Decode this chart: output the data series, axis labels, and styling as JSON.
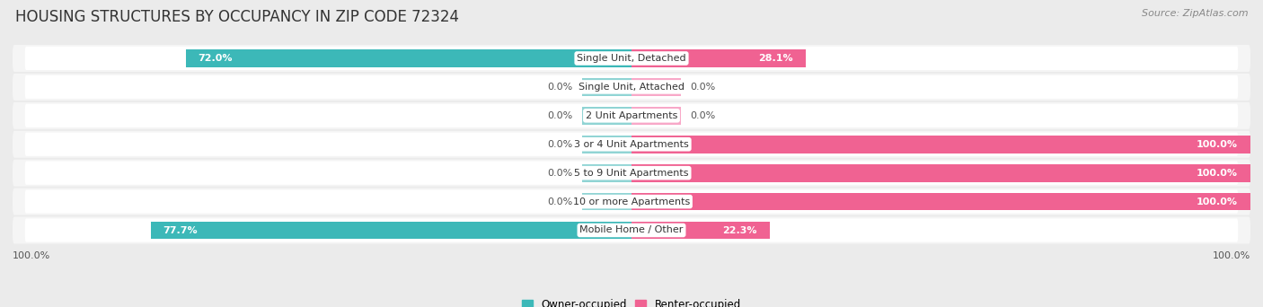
{
  "title": "HOUSING STRUCTURES BY OCCUPANCY IN ZIP CODE 72324",
  "source": "Source: ZipAtlas.com",
  "categories": [
    "Single Unit, Detached",
    "Single Unit, Attached",
    "2 Unit Apartments",
    "3 or 4 Unit Apartments",
    "5 to 9 Unit Apartments",
    "10 or more Apartments",
    "Mobile Home / Other"
  ],
  "owner_pct": [
    72.0,
    0.0,
    0.0,
    0.0,
    0.0,
    0.0,
    77.7
  ],
  "renter_pct": [
    28.1,
    0.0,
    0.0,
    100.0,
    100.0,
    100.0,
    22.3
  ],
  "owner_color": "#3cb8b8",
  "renter_color": "#f06292",
  "owner_stub_color": "#90d4d4",
  "renter_stub_color": "#f8a8c8",
  "bg_color": "#ebebeb",
  "row_bg_color": "#f5f5f5",
  "row_inner_color": "#ffffff",
  "title_fontsize": 12,
  "source_fontsize": 8,
  "bar_label_fontsize": 8,
  "cat_label_fontsize": 8
}
